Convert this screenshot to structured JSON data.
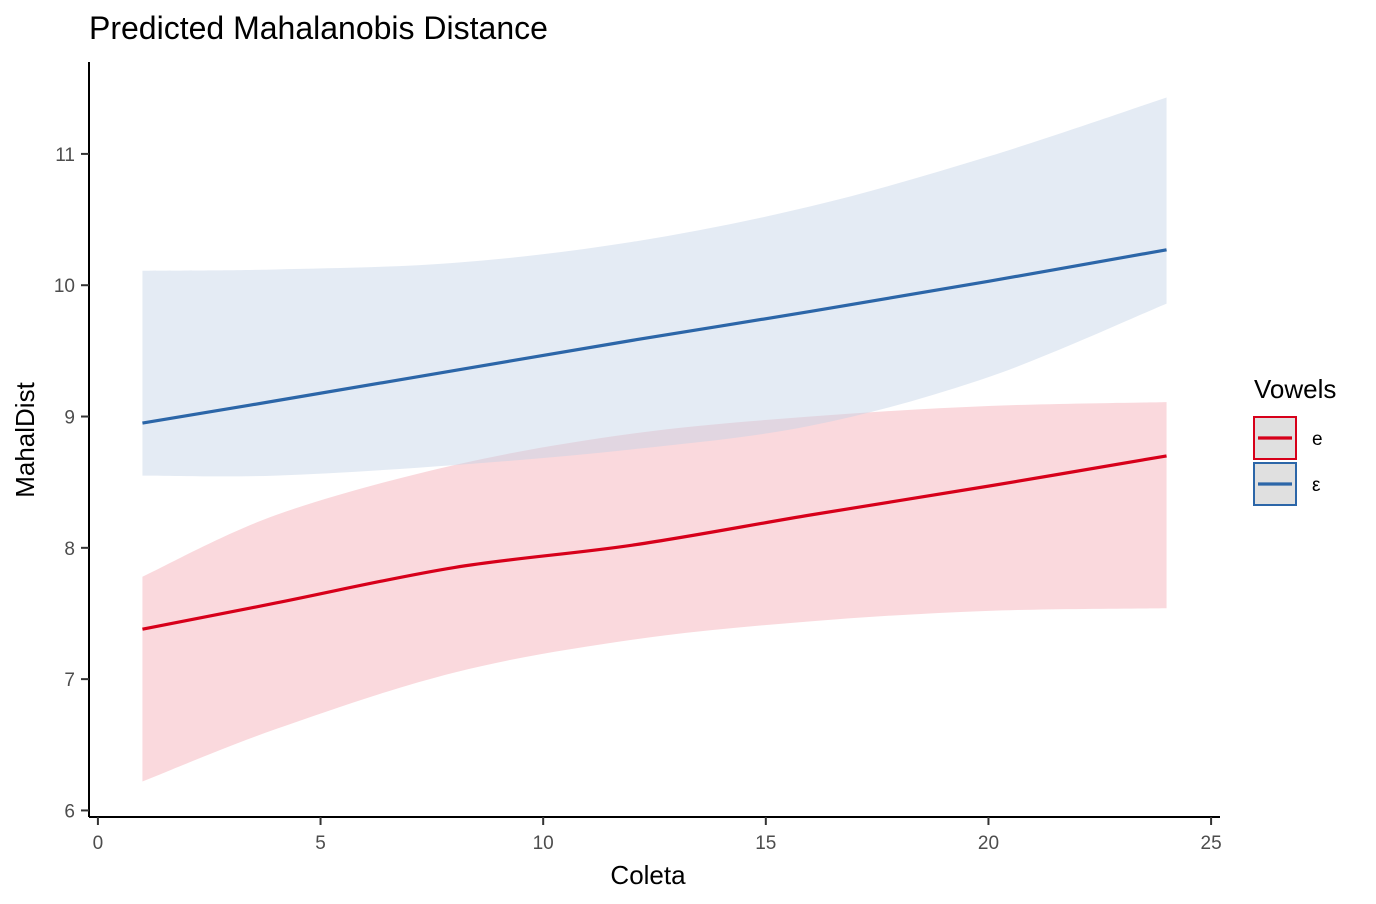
{
  "chart_data": {
    "type": "line",
    "title": "Predicted Mahalanobis Distance",
    "xlabel": "Coleta",
    "ylabel": "MahalDist",
    "xlim": [
      -0.2,
      25.2
    ],
    "ylim": [
      5.95,
      11.7
    ],
    "x_ticks": [
      0,
      5,
      10,
      15,
      20,
      25
    ],
    "y_ticks": [
      6,
      7,
      8,
      9,
      10,
      11
    ],
    "grid": false,
    "legend": {
      "title": "Vowels",
      "position": "right"
    },
    "series": [
      {
        "name": "e",
        "color": "#d7001a",
        "fill": "#f3aab4",
        "x": [
          1,
          4,
          8,
          12,
          16,
          20,
          24
        ],
        "y": [
          7.38,
          7.58,
          7.85,
          8.02,
          8.25,
          8.47,
          8.7
        ],
        "lower": [
          6.22,
          6.62,
          7.05,
          7.3,
          7.44,
          7.52,
          7.54
        ],
        "upper": [
          7.78,
          8.25,
          8.63,
          8.87,
          9.0,
          9.08,
          9.11
        ]
      },
      {
        "name": "ε",
        "color": "#2c66a8",
        "fill": "#c3d3e7",
        "x": [
          1,
          4,
          8,
          12,
          16,
          20,
          24
        ],
        "y": [
          8.95,
          9.12,
          9.35,
          9.58,
          9.8,
          10.03,
          10.27
        ],
        "lower": [
          8.55,
          8.55,
          8.63,
          8.75,
          8.93,
          9.3,
          9.86
        ],
        "upper": [
          10.11,
          10.12,
          10.17,
          10.33,
          10.6,
          10.98,
          11.43
        ]
      }
    ]
  }
}
